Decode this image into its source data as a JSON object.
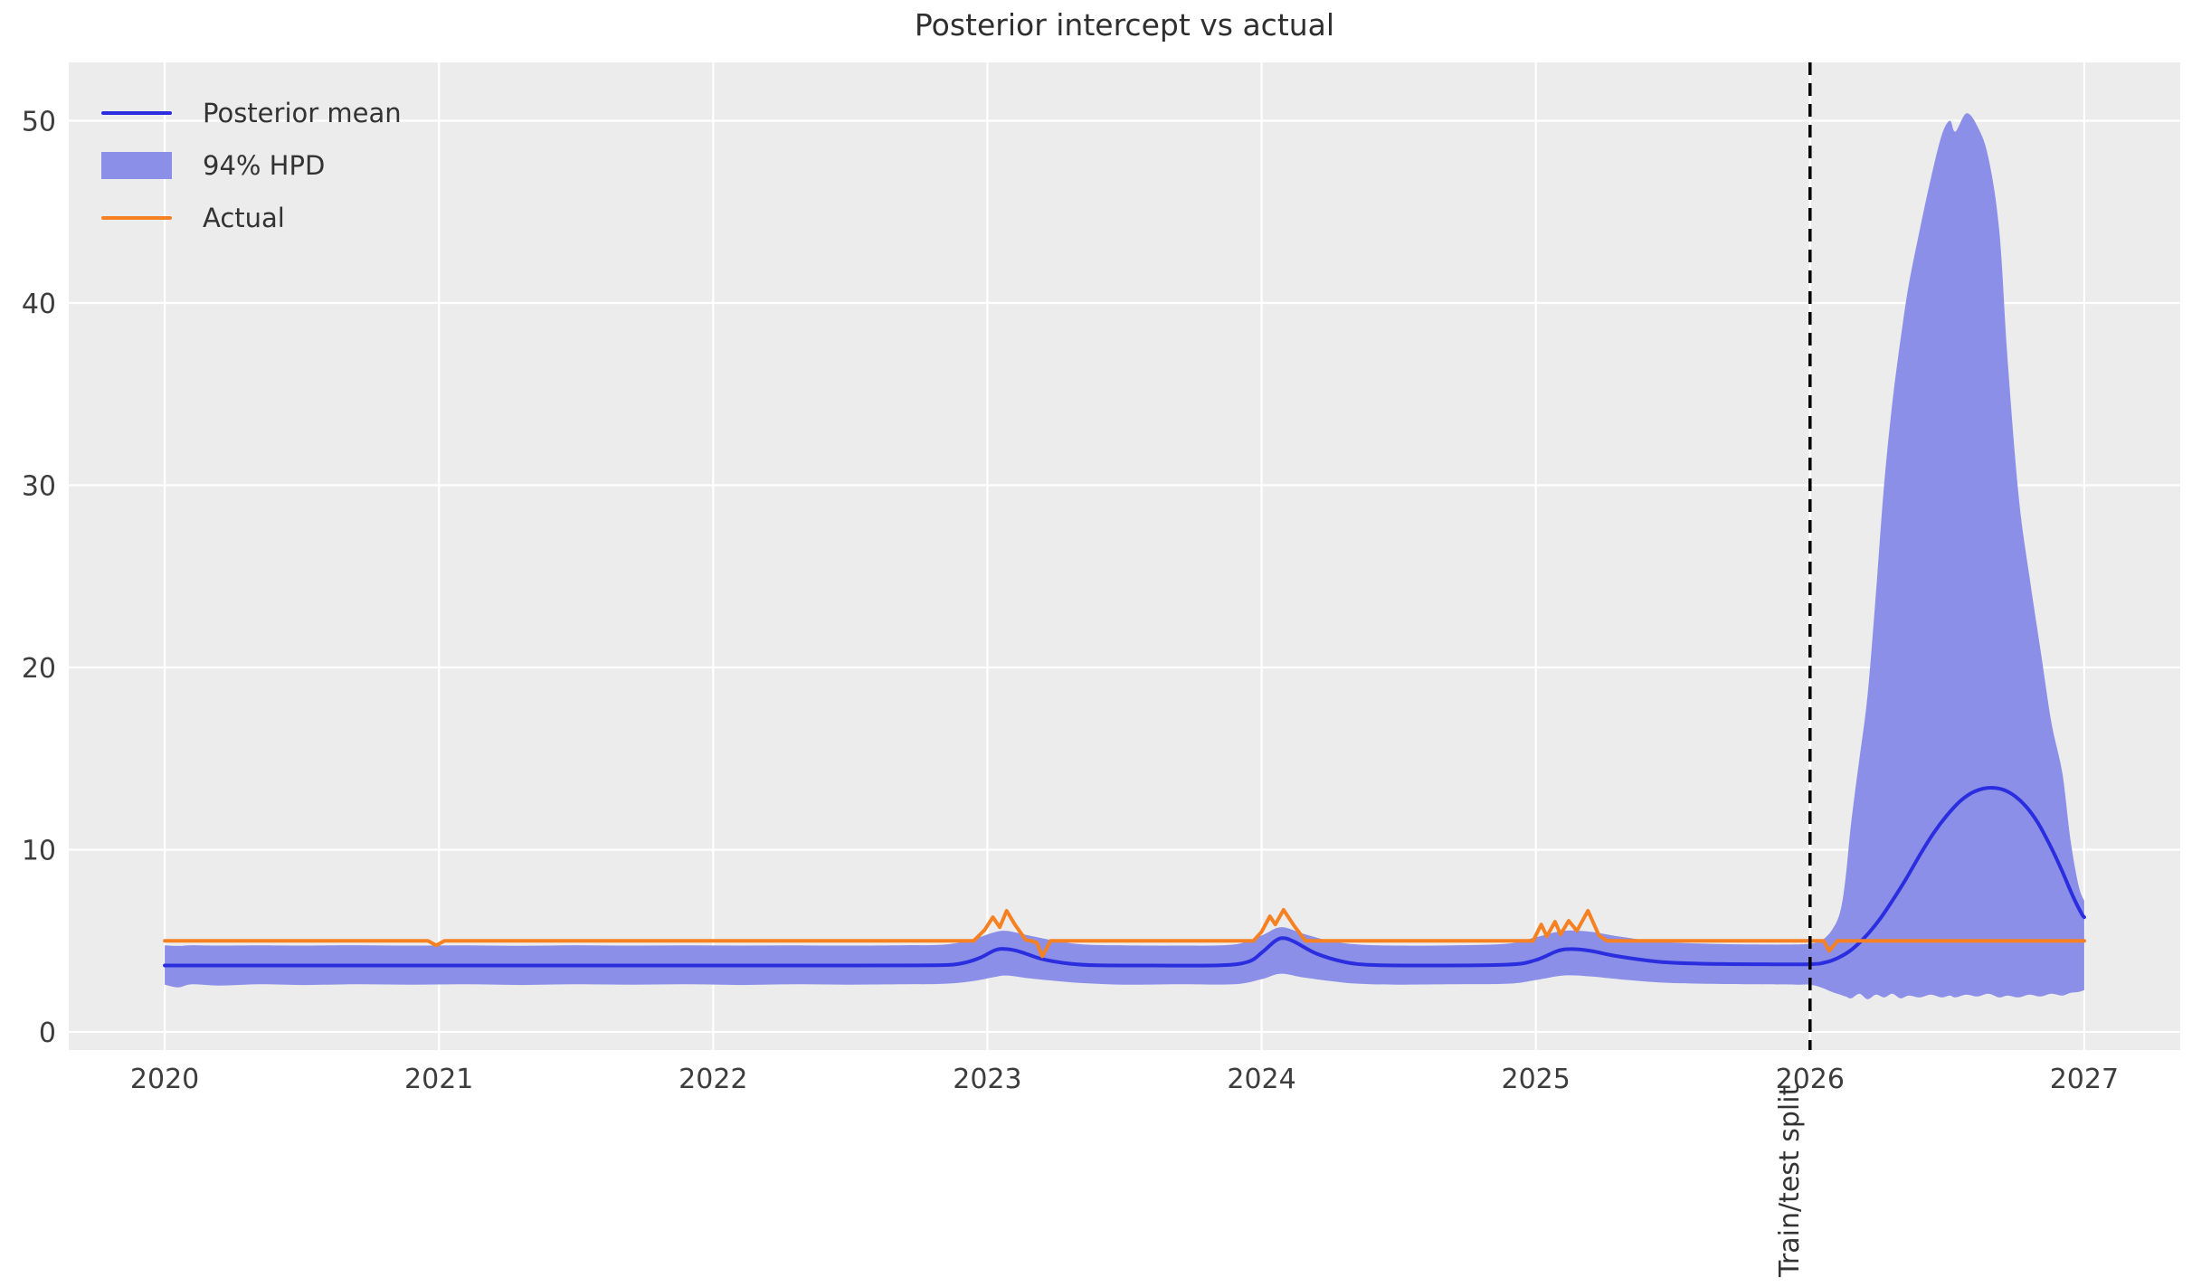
{
  "chart_data": {
    "type": "line",
    "title": "Posterior intercept vs actual",
    "xlim": [
      2019.65,
      2027.35
    ],
    "ylim": [
      -0.99,
      53.2
    ],
    "xtick_values": [
      2020,
      2021,
      2022,
      2023,
      2024,
      2025,
      2026,
      2027
    ],
    "xtick_labels": [
      "2020",
      "2021",
      "2022",
      "2023",
      "2024",
      "2025",
      "2026",
      "2027"
    ],
    "ytick_values": [
      0,
      10,
      20,
      30,
      40,
      50
    ],
    "ytick_labels": [
      "0",
      "10",
      "20",
      "30",
      "40",
      "50"
    ],
    "grid": true,
    "plot_background": "#ececec",
    "grid_color": "#ffffff",
    "tick_color": "#3d3d3d",
    "legend": {
      "position": "upper left",
      "entries": [
        {
          "label": "Posterior mean",
          "swatch": "line",
          "color": "#2a2ede"
        },
        {
          "label": "94% HPD",
          "swatch": "patch",
          "color": "#8b8fe8"
        },
        {
          "label": "Actual",
          "swatch": "line",
          "color": "#f58123"
        }
      ]
    },
    "train_test_split": {
      "x": 2026.0,
      "label": "Train/test split",
      "line_style": "dashed",
      "color": "#000000"
    },
    "series": [
      {
        "name": "Posterior mean",
        "color": "#2a2ede",
        "width": 4,
        "smooth": true,
        "points": [
          [
            2020.0,
            3.65
          ],
          [
            2020.5,
            3.65
          ],
          [
            2021.0,
            3.65
          ],
          [
            2021.5,
            3.65
          ],
          [
            2022.0,
            3.65
          ],
          [
            2022.5,
            3.65
          ],
          [
            2022.8,
            3.66
          ],
          [
            2022.9,
            3.75
          ],
          [
            2022.97,
            4.05
          ],
          [
            2023.03,
            4.5
          ],
          [
            2023.07,
            4.55
          ],
          [
            2023.12,
            4.4
          ],
          [
            2023.2,
            4.0
          ],
          [
            2023.3,
            3.75
          ],
          [
            2023.4,
            3.66
          ],
          [
            2023.6,
            3.65
          ],
          [
            2023.85,
            3.66
          ],
          [
            2023.95,
            3.85
          ],
          [
            2024.0,
            4.35
          ],
          [
            2024.05,
            5.0
          ],
          [
            2024.08,
            5.15
          ],
          [
            2024.12,
            4.95
          ],
          [
            2024.2,
            4.3
          ],
          [
            2024.3,
            3.85
          ],
          [
            2024.4,
            3.68
          ],
          [
            2024.6,
            3.65
          ],
          [
            2024.9,
            3.7
          ],
          [
            2025.0,
            3.95
          ],
          [
            2025.08,
            4.45
          ],
          [
            2025.13,
            4.55
          ],
          [
            2025.2,
            4.45
          ],
          [
            2025.3,
            4.15
          ],
          [
            2025.45,
            3.85
          ],
          [
            2025.6,
            3.75
          ],
          [
            2025.8,
            3.72
          ],
          [
            2026.0,
            3.72
          ],
          [
            2026.05,
            3.8
          ],
          [
            2026.1,
            4.05
          ],
          [
            2026.15,
            4.5
          ],
          [
            2026.2,
            5.2
          ],
          [
            2026.25,
            6.1
          ],
          [
            2026.3,
            7.2
          ],
          [
            2026.35,
            8.4
          ],
          [
            2026.4,
            9.7
          ],
          [
            2026.45,
            10.9
          ],
          [
            2026.5,
            11.9
          ],
          [
            2026.55,
            12.7
          ],
          [
            2026.6,
            13.2
          ],
          [
            2026.66,
            13.4
          ],
          [
            2026.72,
            13.2
          ],
          [
            2026.78,
            12.5
          ],
          [
            2026.83,
            11.5
          ],
          [
            2026.88,
            10.1
          ],
          [
            2026.92,
            8.8
          ],
          [
            2026.96,
            7.4
          ],
          [
            2026.99,
            6.5
          ],
          [
            2027.0,
            6.3
          ]
        ]
      },
      {
        "name": "Actual",
        "color": "#f58123",
        "width": 4,
        "smooth": false,
        "points": [
          [
            2020.0,
            5.0
          ],
          [
            2020.96,
            5.0
          ],
          [
            2020.99,
            4.75
          ],
          [
            2021.02,
            5.0
          ],
          [
            2022.0,
            5.0
          ],
          [
            2022.95,
            5.0
          ],
          [
            2022.99,
            5.6
          ],
          [
            2023.02,
            6.3
          ],
          [
            2023.045,
            5.75
          ],
          [
            2023.07,
            6.65
          ],
          [
            2023.1,
            5.9
          ],
          [
            2023.14,
            5.05
          ],
          [
            2023.16,
            5.0
          ],
          [
            2023.18,
            4.9
          ],
          [
            2023.2,
            4.15
          ],
          [
            2023.23,
            5.0
          ],
          [
            2023.5,
            5.0
          ],
          [
            2023.97,
            5.0
          ],
          [
            2024.0,
            5.5
          ],
          [
            2024.03,
            6.35
          ],
          [
            2024.05,
            5.9
          ],
          [
            2024.08,
            6.7
          ],
          [
            2024.12,
            5.8
          ],
          [
            2024.16,
            5.0
          ],
          [
            2024.5,
            5.0
          ],
          [
            2024.99,
            5.0
          ],
          [
            2025.02,
            5.9
          ],
          [
            2025.04,
            5.25
          ],
          [
            2025.07,
            6.05
          ],
          [
            2025.09,
            5.35
          ],
          [
            2025.12,
            6.1
          ],
          [
            2025.15,
            5.55
          ],
          [
            2025.19,
            6.65
          ],
          [
            2025.23,
            5.3
          ],
          [
            2025.26,
            5.0
          ],
          [
            2025.6,
            5.0
          ],
          [
            2026.05,
            5.0
          ],
          [
            2026.07,
            4.45
          ],
          [
            2026.1,
            5.0
          ],
          [
            2027.0,
            5.0
          ]
        ]
      }
    ],
    "hpd_band": {
      "name": "94% HPD",
      "color": "#8b8fe8",
      "points": [
        [
          2020.0,
          2.6,
          4.75
        ],
        [
          2020.05,
          2.45,
          4.72
        ],
        [
          2020.1,
          2.62,
          4.76
        ],
        [
          2020.2,
          2.55,
          4.74
        ],
        [
          2020.35,
          2.62,
          4.75
        ],
        [
          2020.5,
          2.58,
          4.74
        ],
        [
          2020.7,
          2.62,
          4.76
        ],
        [
          2020.9,
          2.6,
          4.74
        ],
        [
          2021.1,
          2.62,
          4.75
        ],
        [
          2021.3,
          2.58,
          4.73
        ],
        [
          2021.5,
          2.62,
          4.76
        ],
        [
          2021.7,
          2.6,
          4.74
        ],
        [
          2021.9,
          2.62,
          4.75
        ],
        [
          2022.1,
          2.58,
          4.74
        ],
        [
          2022.3,
          2.62,
          4.75
        ],
        [
          2022.5,
          2.6,
          4.74
        ],
        [
          2022.7,
          2.62,
          4.76
        ],
        [
          2022.85,
          2.65,
          4.8
        ],
        [
          2022.95,
          2.8,
          5.1
        ],
        [
          2023.02,
          3.0,
          5.45
        ],
        [
          2023.07,
          3.1,
          5.55
        ],
        [
          2023.15,
          2.95,
          5.3
        ],
        [
          2023.25,
          2.8,
          5.0
        ],
        [
          2023.35,
          2.68,
          4.8
        ],
        [
          2023.5,
          2.6,
          4.75
        ],
        [
          2023.7,
          2.62,
          4.74
        ],
        [
          2023.9,
          2.62,
          4.8
        ],
        [
          2024.0,
          2.9,
          5.3
        ],
        [
          2024.07,
          3.2,
          5.75
        ],
        [
          2024.15,
          3.0,
          5.4
        ],
        [
          2024.25,
          2.8,
          5.0
        ],
        [
          2024.35,
          2.65,
          4.8
        ],
        [
          2024.5,
          2.6,
          4.74
        ],
        [
          2024.7,
          2.62,
          4.75
        ],
        [
          2024.9,
          2.65,
          4.85
        ],
        [
          2025.0,
          2.85,
          5.2
        ],
        [
          2025.1,
          3.1,
          5.55
        ],
        [
          2025.2,
          3.05,
          5.5
        ],
        [
          2025.3,
          2.9,
          5.25
        ],
        [
          2025.45,
          2.72,
          4.95
        ],
        [
          2025.6,
          2.65,
          4.85
        ],
        [
          2025.8,
          2.62,
          4.8
        ],
        [
          2025.95,
          2.6,
          4.8
        ],
        [
          2026.0,
          2.6,
          4.85
        ],
        [
          2026.04,
          2.45,
          5.0
        ],
        [
          2026.08,
          2.2,
          5.6
        ],
        [
          2026.11,
          2.05,
          6.6
        ],
        [
          2026.13,
          1.95,
          8.5
        ],
        [
          2026.15,
          1.85,
          11.5
        ],
        [
          2026.18,
          2.1,
          15.0
        ],
        [
          2026.21,
          1.8,
          18.5
        ],
        [
          2026.24,
          2.05,
          24.0
        ],
        [
          2026.27,
          1.9,
          30.0
        ],
        [
          2026.3,
          2.1,
          34.5
        ],
        [
          2026.33,
          1.85,
          38.0
        ],
        [
          2026.36,
          2.0,
          41.0
        ],
        [
          2026.4,
          1.9,
          44.0
        ],
        [
          2026.44,
          2.05,
          46.8
        ],
        [
          2026.48,
          1.9,
          49.2
        ],
        [
          2026.51,
          2.0,
          50.0
        ],
        [
          2026.53,
          1.9,
          49.4
        ],
        [
          2026.57,
          2.05,
          50.4
        ],
        [
          2026.61,
          1.95,
          49.7
        ],
        [
          2026.65,
          2.1,
          48.0
        ],
        [
          2026.69,
          1.9,
          44.0
        ],
        [
          2026.72,
          2.0,
          37.0
        ],
        [
          2026.76,
          1.9,
          29.5
        ],
        [
          2026.8,
          2.05,
          25.0
        ],
        [
          2026.84,
          1.95,
          21.0
        ],
        [
          2026.88,
          2.1,
          17.0
        ],
        [
          2026.92,
          2.0,
          14.2
        ],
        [
          2026.95,
          2.15,
          10.5
        ],
        [
          2026.98,
          2.2,
          8.0
        ],
        [
          2027.0,
          2.3,
          7.2
        ]
      ]
    }
  }
}
